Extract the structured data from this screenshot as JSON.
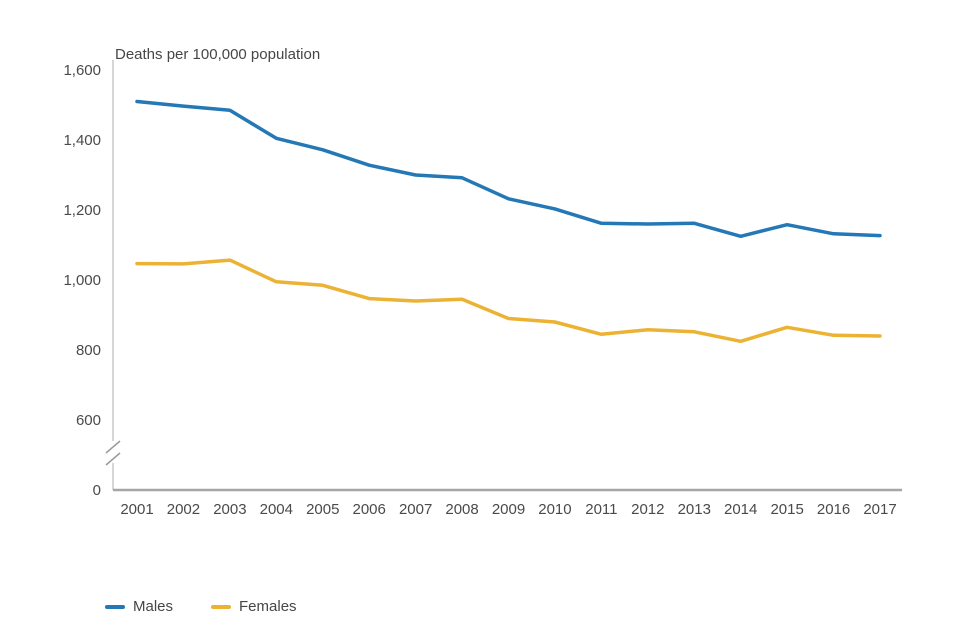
{
  "chart_data": {
    "type": "line",
    "title": "Deaths per 100,000 population",
    "x": [
      2001,
      2002,
      2003,
      2004,
      2005,
      2006,
      2007,
      2008,
      2009,
      2010,
      2011,
      2012,
      2013,
      2014,
      2015,
      2016,
      2017
    ],
    "series": [
      {
        "name": "Males",
        "color": "#2478b5",
        "values": [
          1510,
          1497,
          1485,
          1405,
          1372,
          1328,
          1300,
          1292,
          1232,
          1203,
          1162,
          1160,
          1162,
          1125,
          1158,
          1132,
          1127
        ]
      },
      {
        "name": "Females",
        "color": "#ecb233",
        "values": [
          1047,
          1046,
          1057,
          995,
          985,
          947,
          940,
          945,
          890,
          880,
          845,
          858,
          852,
          825,
          865,
          842,
          840
        ]
      }
    ],
    "y_ticks": [
      0,
      600,
      800,
      1000,
      1200,
      1400,
      1600
    ],
    "y_tick_labels": [
      "0",
      "600",
      "800",
      "1,000",
      "1,200",
      "1,400",
      "1,600"
    ],
    "ylim": [
      600,
      1600
    ],
    "axis_break_between": [
      0,
      600
    ],
    "grid": false,
    "legend_position": "bottom-left",
    "xlabel": "",
    "ylabel": "Deaths per 100,000 population"
  }
}
